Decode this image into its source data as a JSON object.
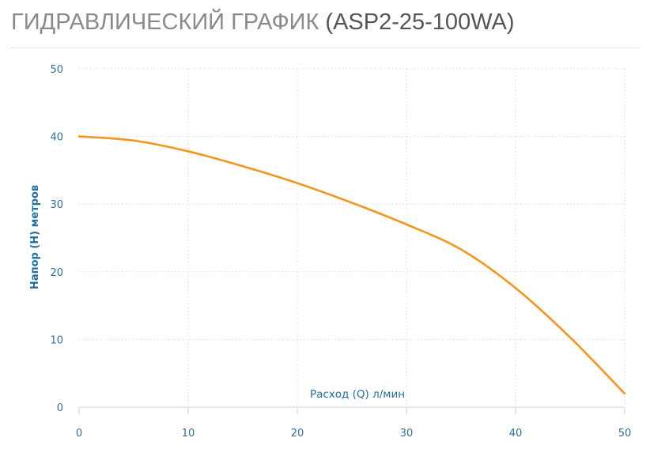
{
  "title": {
    "main": "ГИДРАВЛИЧЕСКИЙ ГРАФИК",
    "model": "(ASP2-25-100WA)"
  },
  "chart_data": {
    "type": "line",
    "xlabel": "Расход (Q) л/мин",
    "ylabel": "Напор (H) метров",
    "xlim": [
      0,
      50
    ],
    "ylim": [
      0,
      50
    ],
    "x_ticks": [
      0,
      10,
      20,
      30,
      40,
      50
    ],
    "y_ticks": [
      0,
      10,
      20,
      30,
      40,
      50
    ],
    "grid": true,
    "series": [
      {
        "color": "#f7941d",
        "x": [
          0,
          5,
          10,
          15,
          20,
          25,
          30,
          35,
          40,
          45,
          50
        ],
        "y": [
          40,
          39.4,
          37.8,
          35.6,
          33.1,
          30.2,
          27.0,
          23.3,
          17.6,
          10.3,
          2
        ]
      }
    ]
  }
}
